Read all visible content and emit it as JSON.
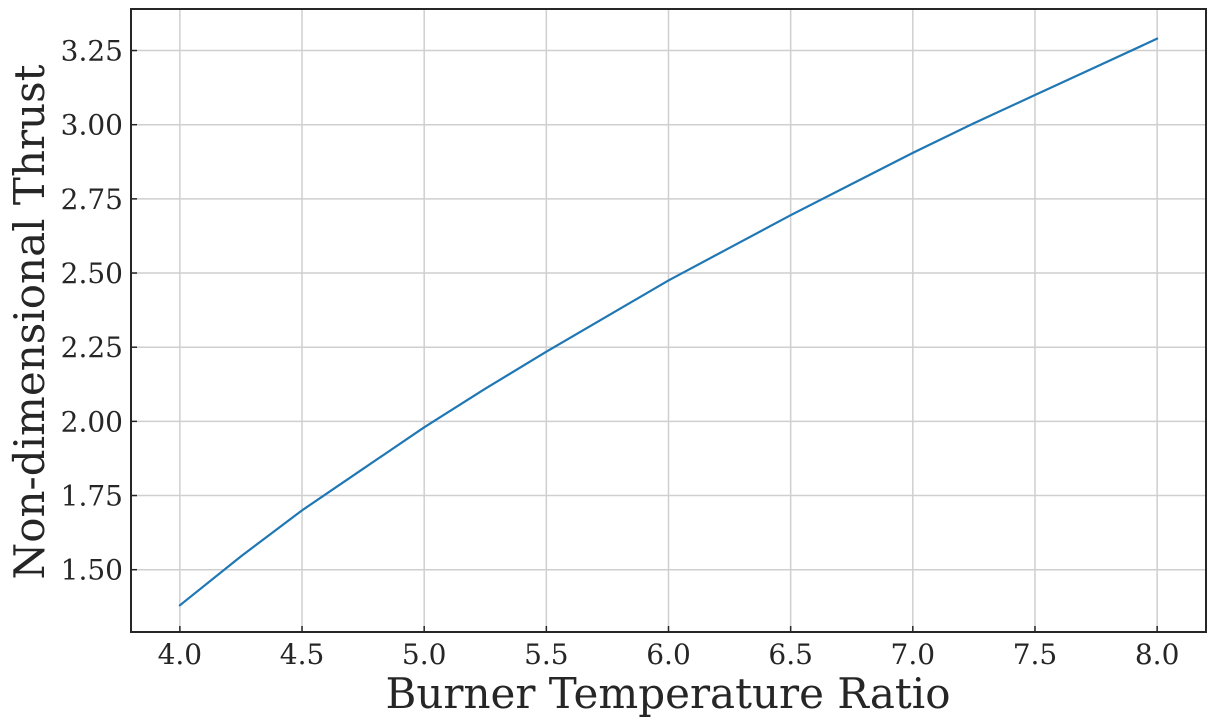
{
  "chart_data": {
    "type": "line",
    "title": "",
    "xlabel": "Burner Temperature Ratio",
    "ylabel": "Non-dimensional Thrust",
    "xlim": [
      3.8,
      8.2
    ],
    "ylim": [
      1.29,
      3.39
    ],
    "grid": true,
    "x_ticks": [
      4.0,
      4.5,
      5.0,
      5.5,
      6.0,
      6.5,
      7.0,
      7.5,
      8.0
    ],
    "x_tick_labels": [
      "4.0",
      "4.5",
      "5.0",
      "5.5",
      "6.0",
      "6.5",
      "7.0",
      "7.5",
      "8.0"
    ],
    "y_ticks": [
      1.5,
      1.75,
      2.0,
      2.25,
      2.5,
      2.75,
      3.0,
      3.25
    ],
    "y_tick_labels": [
      "1.50",
      "1.75",
      "2.00",
      "2.25",
      "2.50",
      "2.75",
      "3.00",
      "3.25"
    ],
    "series": [
      {
        "color": "#1f77b4",
        "x": [
          4.0,
          4.25,
          4.5,
          4.75,
          5.0,
          5.25,
          5.5,
          5.75,
          6.0,
          6.25,
          6.5,
          6.75,
          7.0,
          7.25,
          7.5,
          7.75,
          8.0
        ],
        "y": [
          1.38,
          1.545,
          1.7,
          1.84,
          1.98,
          2.11,
          2.235,
          2.355,
          2.475,
          2.585,
          2.695,
          2.8,
          2.905,
          3.005,
          3.1,
          3.195,
          3.29
        ]
      }
    ]
  }
}
